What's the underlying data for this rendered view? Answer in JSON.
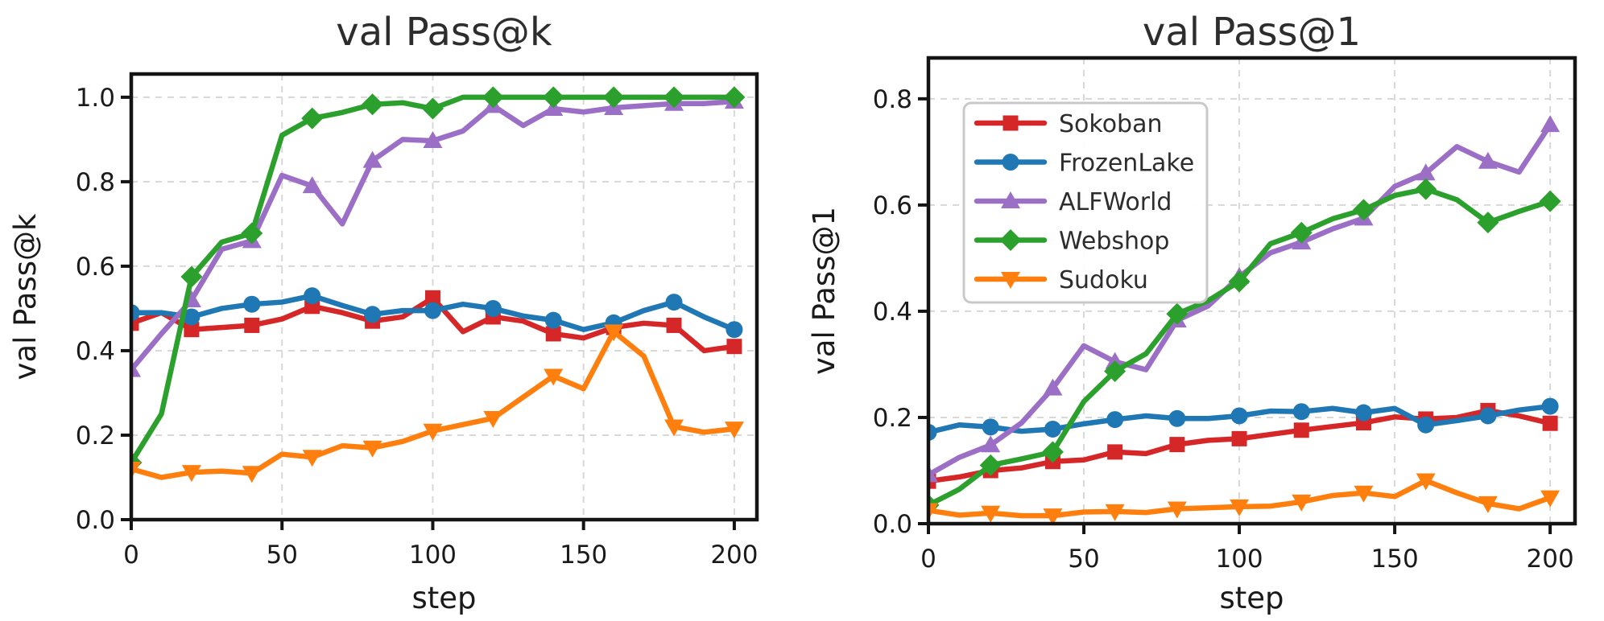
{
  "figure": {
    "background": "#ffffff",
    "title_color": "#2d2d2d",
    "tick_label_color": "#1a1a1a",
    "axis_label_color": "#1a1a1a",
    "spine_color": "#141414",
    "grid_color": "#d8d8d8",
    "legend_border_color": "#c9c9c9",
    "legend_bg_color": "#ffffff",
    "legend_text_color": "#2d2d2d"
  },
  "chart_data": [
    {
      "type": "line",
      "title": "val Pass@k",
      "xlabel": "step",
      "ylabel": "val Pass@k",
      "x": [
        0,
        10,
        20,
        30,
        40,
        50,
        60,
        70,
        80,
        90,
        100,
        110,
        120,
        130,
        140,
        150,
        160,
        170,
        180,
        190,
        200
      ],
      "xlim": [
        0,
        207.5
      ],
      "ylim": [
        0,
        1.055
      ],
      "xticks": {
        "values": [
          0,
          50,
          100,
          150,
          200
        ],
        "labels": [
          "0",
          "50",
          "100",
          "150",
          "200"
        ]
      },
      "yticks": {
        "values": [
          0,
          0.2,
          0.4,
          0.6,
          0.8,
          1.0
        ],
        "labels": [
          "0.0",
          "0.2",
          "0.4",
          "0.6",
          "0.8",
          "1.0"
        ]
      },
      "grid": "dashed",
      "legend": null,
      "marker_every": 2,
      "series": [
        {
          "name": "Sokoban",
          "color": "#d62728",
          "marker": "square",
          "values": [
            0.465,
            0.49,
            0.45,
            0.455,
            0.46,
            0.475,
            0.505,
            0.49,
            0.47,
            0.48,
            0.525,
            0.445,
            0.48,
            0.47,
            0.44,
            0.43,
            0.455,
            0.465,
            0.46,
            0.4,
            0.41
          ]
        },
        {
          "name": "FrozenLake",
          "color": "#1f77b4",
          "marker": "circle",
          "values": [
            0.49,
            0.49,
            0.48,
            0.5,
            0.51,
            0.515,
            0.53,
            0.507,
            0.486,
            0.495,
            0.495,
            0.51,
            0.5,
            0.482,
            0.472,
            0.45,
            0.466,
            0.495,
            0.515,
            0.48,
            0.45
          ]
        },
        {
          "name": "ALFWorld",
          "color": "#9c6fc7",
          "marker": "triangle-up",
          "values": [
            0.355,
            0.44,
            0.52,
            0.64,
            0.66,
            0.815,
            0.79,
            0.7,
            0.85,
            0.9,
            0.897,
            0.92,
            0.98,
            0.933,
            0.973,
            0.965,
            0.975,
            0.98,
            0.985,
            0.985,
            0.99
          ]
        },
        {
          "name": "Webshop",
          "color": "#2ca02c",
          "marker": "diamond",
          "values": [
            0.135,
            0.25,
            0.575,
            0.657,
            0.678,
            0.91,
            0.95,
            0.964,
            0.983,
            0.987,
            0.973,
            1.0,
            1.0,
            1.0,
            1.0,
            1.0,
            1.0,
            1.0,
            1.0,
            1.0,
            1.0
          ]
        },
        {
          "name": "Sudoku",
          "color": "#ff7f0e",
          "marker": "triangle-down",
          "values": [
            0.12,
            0.1,
            0.112,
            0.115,
            0.11,
            0.155,
            0.148,
            0.175,
            0.17,
            0.185,
            0.21,
            0.225,
            0.24,
            0.29,
            0.34,
            0.31,
            0.445,
            0.387,
            0.22,
            0.207,
            0.215
          ]
        }
      ]
    },
    {
      "type": "line",
      "title": "val Pass@1",
      "xlabel": "step",
      "ylabel": "val Pass@1",
      "x": [
        0,
        10,
        20,
        30,
        40,
        50,
        60,
        70,
        80,
        90,
        100,
        110,
        120,
        130,
        140,
        150,
        160,
        170,
        180,
        190,
        200
      ],
      "xlim": [
        0,
        208
      ],
      "ylim": [
        0,
        0.877
      ],
      "xticks": {
        "values": [
          0,
          50,
          100,
          150,
          200
        ],
        "labels": [
          "0",
          "50",
          "100",
          "150",
          "200"
        ]
      },
      "yticks": {
        "values": [
          0,
          0.2,
          0.4,
          0.6,
          0.8
        ],
        "labels": [
          "0.0",
          "0.2",
          "0.4",
          "0.6",
          "0.8"
        ]
      },
      "grid": "dashed",
      "legend": {
        "location": "upper-left"
      },
      "marker_every": 2,
      "series": [
        {
          "name": "Sokoban",
          "color": "#d62728",
          "marker": "square",
          "values": [
            0.08,
            0.088,
            0.1,
            0.105,
            0.117,
            0.12,
            0.135,
            0.132,
            0.149,
            0.157,
            0.16,
            0.168,
            0.176,
            0.183,
            0.19,
            0.201,
            0.197,
            0.2,
            0.213,
            0.203,
            0.189
          ]
        },
        {
          "name": "FrozenLake",
          "color": "#1f77b4",
          "marker": "circle",
          "values": [
            0.172,
            0.186,
            0.182,
            0.174,
            0.178,
            0.188,
            0.196,
            0.203,
            0.198,
            0.198,
            0.203,
            0.212,
            0.211,
            0.217,
            0.209,
            0.217,
            0.186,
            0.194,
            0.203,
            0.214,
            0.221
          ]
        },
        {
          "name": "ALFWorld",
          "color": "#9c6fc7",
          "marker": "triangle-up",
          "values": [
            0.092,
            0.125,
            0.148,
            0.19,
            0.255,
            0.335,
            0.305,
            0.29,
            0.383,
            0.41,
            0.465,
            0.51,
            0.53,
            0.555,
            0.575,
            0.635,
            0.66,
            0.71,
            0.682,
            0.662,
            0.751
          ]
        },
        {
          "name": "Webshop",
          "color": "#2ca02c",
          "marker": "diamond",
          "values": [
            0.035,
            0.065,
            0.11,
            0.122,
            0.135,
            0.23,
            0.287,
            0.32,
            0.395,
            0.42,
            0.456,
            0.527,
            0.548,
            0.574,
            0.591,
            0.618,
            0.63,
            0.61,
            0.567,
            0.588,
            0.607
          ]
        },
        {
          "name": "Sudoku",
          "color": "#ff7f0e",
          "marker": "triangle-down",
          "values": [
            0.025,
            0.016,
            0.02,
            0.015,
            0.015,
            0.022,
            0.023,
            0.021,
            0.028,
            0.03,
            0.032,
            0.033,
            0.041,
            0.053,
            0.058,
            0.051,
            0.081,
            0.058,
            0.038,
            0.028,
            0.049
          ]
        }
      ]
    }
  ]
}
